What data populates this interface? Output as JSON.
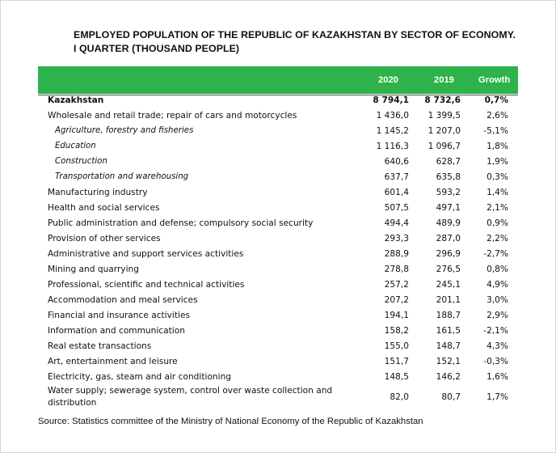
{
  "title_line1": "EMPLOYED POPULATION OF THE REPUBLIC OF KAZAKHSTAN BY SECTOR OF ECONOMY.",
  "title_line2": "I QUARTER (THOUSAND PEOPLE)",
  "columns": {
    "y2020": "2020",
    "y2019": "2019",
    "growth": "Growth"
  },
  "header_color": "#2db34a",
  "source": "Source: Statistics committee of the Ministry of National Economy of the Republic of Kazakhstan",
  "chart_data": {
    "type": "table",
    "columns": [
      "2020",
      "2019",
      "Growth"
    ],
    "rows": [
      {
        "name": "Kazakhstan",
        "v2020": "8 794,1",
        "v2019": "8 732,6",
        "growth": "0,7%",
        "bold": true
      },
      {
        "name": "Wholesale and retail trade; repair of cars and motorcycles",
        "v2020": "1 436,0",
        "v2019": "1 399,5",
        "growth": "2,6%"
      },
      {
        "name": "Agriculture, forestry and fisheries",
        "v2020": "1 145,2",
        "v2019": "1 207,0",
        "growth": "-5,1%",
        "italic": true
      },
      {
        "name": "Education",
        "v2020": "1 116,3",
        "v2019": "1 096,7",
        "growth": "1,8%",
        "italic": true
      },
      {
        "name": "Construction",
        "v2020": "640,6",
        "v2019": "628,7",
        "growth": "1,9%",
        "italic": true
      },
      {
        "name": "Transportation and warehousing",
        "v2020": "637,7",
        "v2019": "635,8",
        "growth": "0,3%",
        "italic": true
      },
      {
        "name": "Manufacturing industry",
        "v2020": "601,4",
        "v2019": "593,2",
        "growth": "1,4%"
      },
      {
        "name": "Health and social services",
        "v2020": "507,5",
        "v2019": "497,1",
        "growth": "2,1%"
      },
      {
        "name": "Public administration and defense; compulsory social security",
        "v2020": "494,4",
        "v2019": "489,9",
        "growth": "0,9%"
      },
      {
        "name": "Provision of other services",
        "v2020": "293,3",
        "v2019": "287,0",
        "growth": "2,2%"
      },
      {
        "name": "Administrative and support services activities",
        "v2020": "288,9",
        "v2019": "296,9",
        "growth": "-2,7%"
      },
      {
        "name": "Mining and quarrying",
        "v2020": "278,8",
        "v2019": "276,5",
        "growth": "0,8%"
      },
      {
        "name": "Professional, scientific and technical activities",
        "v2020": "257,2",
        "v2019": "245,1",
        "growth": "4,9%"
      },
      {
        "name": "Accommodation and meal services",
        "v2020": "207,2",
        "v2019": "201,1",
        "growth": "3,0%"
      },
      {
        "name": "Financial and insurance activities",
        "v2020": "194,1",
        "v2019": "188,7",
        "growth": "2,9%"
      },
      {
        "name": "Information and communication",
        "v2020": "158,2",
        "v2019": "161,5",
        "growth": "-2,1%"
      },
      {
        "name": "Real estate transactions",
        "v2020": "155,0",
        "v2019": "148,7",
        "growth": "4,3%"
      },
      {
        "name": "Art, entertainment and leisure",
        "v2020": "151,7",
        "v2019": "152,1",
        "growth": "-0,3%"
      },
      {
        "name": "Electricity, gas, steam and air conditioning",
        "v2020": "148,5",
        "v2019": "146,2",
        "growth": "1,6%"
      },
      {
        "name": "Water supply; sewerage system, control over waste collection and distribution",
        "v2020": "82,0",
        "v2019": "80,7",
        "growth": "1,7%"
      }
    ]
  }
}
